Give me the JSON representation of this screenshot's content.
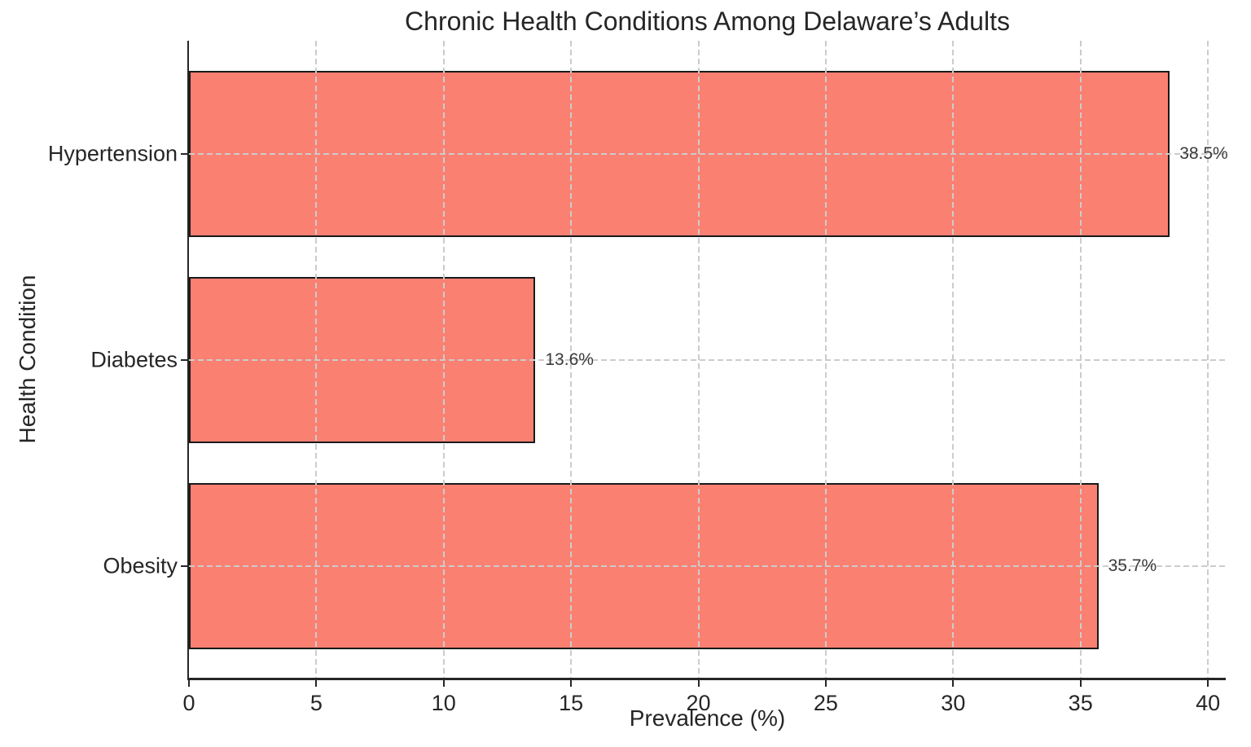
{
  "chart_data": {
    "type": "bar",
    "orientation": "horizontal",
    "title": "Chronic Health Conditions Among Delaware’s Adults",
    "xlabel": "Prevalence (%)",
    "ylabel": "Health Condition",
    "categories": [
      "Hypertension",
      "Diabetes",
      "Obesity"
    ],
    "values": [
      38.5,
      13.6,
      35.7
    ],
    "value_labels": [
      "38.5%",
      "13.6%",
      "35.7%"
    ],
    "x_ticks": [
      0,
      5,
      10,
      15,
      20,
      25,
      30,
      35,
      40
    ],
    "xlim": [
      0,
      40.7
    ],
    "grid": "dashed, both axes, drawn over bars",
    "legend_position": "none",
    "colors": {
      "bar_fill": "#fa8072",
      "bar_edge": "#1a1a1a",
      "grid": "#cccccc",
      "text": "#262626",
      "value_label": "#3a3a3a",
      "background": "#ffffff"
    }
  }
}
